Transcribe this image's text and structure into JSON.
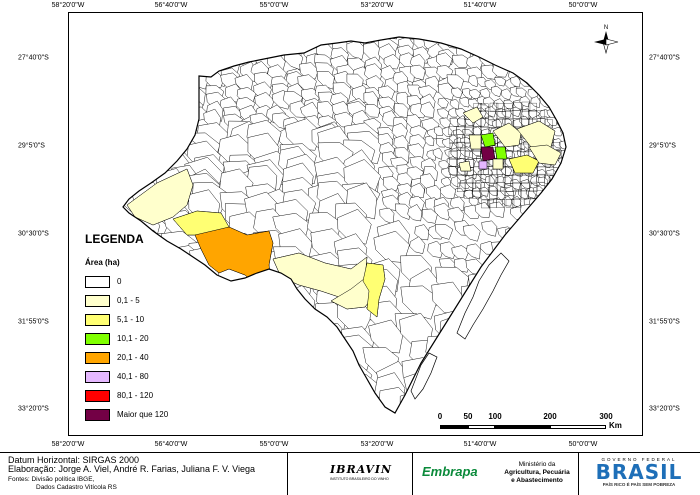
{
  "map": {
    "ticks_top": [
      "58°20'0\"W",
      "56°40'0\"W",
      "55°0'0\"W",
      "53°20'0\"W",
      "51°40'0\"W",
      "50°0'0\"W"
    ],
    "ticks_bottom": [
      "58°20'0\"W",
      "56°40'0\"W",
      "55°0'0\"W",
      "53°20'0\"W",
      "51°40'0\"W",
      "50°0'0\"W"
    ],
    "ticks_left": [
      "27°40'0\"S",
      "29°5'0\"S",
      "30°30'0\"S",
      "31°55'0\"S",
      "33°20'0\"S"
    ],
    "ticks_right": [
      "27°40'0\"S",
      "29°5'0\"S",
      "30°30'0\"S",
      "31°55'0\"S",
      "33°20'0\"S"
    ],
    "north_label": "N",
    "scalebar": {
      "values": [
        "0",
        "50",
        "100",
        "200",
        "300"
      ],
      "unit": "Km"
    }
  },
  "legend": {
    "title": "LEGENDA",
    "subtitle": "Área (ha)",
    "classes": [
      {
        "label": "0",
        "color": "#ffffff"
      },
      {
        "label": "0,1 - 5",
        "color": "#ffffcc"
      },
      {
        "label": "5,1 - 10",
        "color": "#ffff73"
      },
      {
        "label": "10,1 - 20",
        "color": "#80ff00"
      },
      {
        "label": "20,1 - 40",
        "color": "#ffa500"
      },
      {
        "label": "40,1 - 80",
        "color": "#e5b8ff"
      },
      {
        "label": "80,1 - 120",
        "color": "#ff0000"
      },
      {
        "label": "Maior que 120",
        "color": "#730045"
      }
    ]
  },
  "footer": {
    "datum": "Datum Horizontal: SIRGAS 2000",
    "elaboracao": "Elaboração: Jorge A. Viel, André R. Farias, Juliana F. V. Viega",
    "fontes_1": "Fontes: Divisão política IBGE,",
    "fontes_2": "Dados Cadastro Vitícola RS",
    "logo_ibravin": "IBRAVIN",
    "logo_ibravin_sub": "INSTITUTO BRASILEIRO DO VINHO",
    "logo_embrapa": "Embrapa",
    "ministerio": [
      "Ministério da",
      "Agricultura, Pecuária",
      "e Abastecimento"
    ],
    "gov_top": "GOVERNO FEDERAL",
    "gov_brasil": "BRASIL",
    "gov_slogan": "PAÍS RICO É PAÍS SEM POBREZA"
  }
}
